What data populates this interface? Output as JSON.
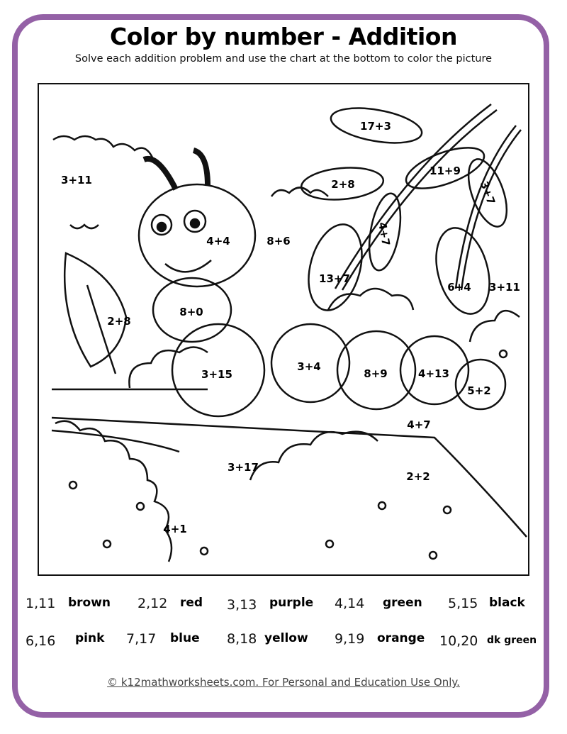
{
  "header": {
    "title": "Color by number - Addition",
    "subtitle": "Solve each addition problem and use the chart at the bottom to color the picture"
  },
  "picture": {
    "problems": [
      "17+3",
      "3+11",
      "2+8",
      "11+9",
      "3+7",
      "4+7",
      "4+4",
      "8+6",
      "13+7",
      "6+4",
      "3+11",
      "2+8",
      "8+0",
      "3+4",
      "8+9",
      "4+13",
      "3+15",
      "5+2",
      "4+7",
      "3+17",
      "2+2",
      "4+1"
    ]
  },
  "legend": [
    {
      "numbers": "1,11",
      "color": "brown"
    },
    {
      "numbers": "2,12",
      "color": "red"
    },
    {
      "numbers": "3,13",
      "color": "purple"
    },
    {
      "numbers": "4,14",
      "color": "green"
    },
    {
      "numbers": "5,15",
      "color": "black"
    },
    {
      "numbers": "6,16",
      "color": "pink"
    },
    {
      "numbers": "7,17",
      "color": "blue"
    },
    {
      "numbers": "8,18",
      "color": "yellow"
    },
    {
      "numbers": "9,19",
      "color": "orange"
    },
    {
      "numbers": "10,20",
      "color": "dk green"
    }
  ],
  "footer": "© k12mathworksheets.com. For Personal and Education Use Only.",
  "colors": {
    "frame": "#9461a6"
  }
}
